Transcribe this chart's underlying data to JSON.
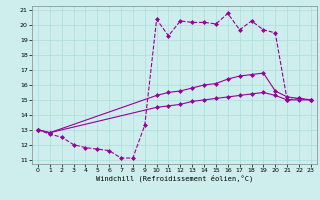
{
  "xlabel": "Windchill (Refroidissement éolien,°C)",
  "bg_color": "#ceeeed",
  "line_color": "#990099",
  "grid_color": "#aadddd",
  "xlim": [
    -0.5,
    23.5
  ],
  "ylim": [
    10.7,
    21.3
  ],
  "yticks": [
    11,
    12,
    13,
    14,
    15,
    16,
    17,
    18,
    19,
    20,
    21
  ],
  "xticks": [
    0,
    1,
    2,
    3,
    4,
    5,
    6,
    7,
    8,
    9,
    10,
    11,
    12,
    13,
    14,
    15,
    16,
    17,
    18,
    19,
    20,
    21,
    22,
    23
  ],
  "s1_x": [
    0,
    1,
    2,
    3,
    4,
    5,
    6,
    7,
    8,
    9,
    10,
    11,
    12,
    13,
    14,
    15,
    16,
    17,
    18,
    19,
    20,
    21,
    22,
    23
  ],
  "s1_y": [
    13.0,
    12.7,
    12.5,
    12.0,
    11.8,
    11.7,
    11.6,
    11.1,
    11.1,
    13.3,
    20.4,
    19.3,
    20.3,
    20.2,
    20.2,
    20.1,
    20.8,
    19.7,
    20.3,
    19.7,
    19.5,
    15.0,
    15.1,
    15.0
  ],
  "s2_x": [
    0,
    1,
    10,
    11,
    12,
    13,
    14,
    15,
    16,
    17,
    18,
    19,
    20,
    21,
    22,
    23
  ],
  "s2_y": [
    13.0,
    12.8,
    15.3,
    15.5,
    15.6,
    15.8,
    16.0,
    16.1,
    16.4,
    16.6,
    16.7,
    16.8,
    15.6,
    15.2,
    15.1,
    15.0
  ],
  "s3_x": [
    0,
    1,
    10,
    11,
    12,
    13,
    14,
    15,
    16,
    17,
    18,
    19,
    20,
    21,
    22,
    23
  ],
  "s3_y": [
    13.0,
    12.8,
    14.5,
    14.6,
    14.7,
    14.9,
    15.0,
    15.1,
    15.2,
    15.3,
    15.4,
    15.5,
    15.3,
    15.0,
    15.0,
    15.0
  ]
}
